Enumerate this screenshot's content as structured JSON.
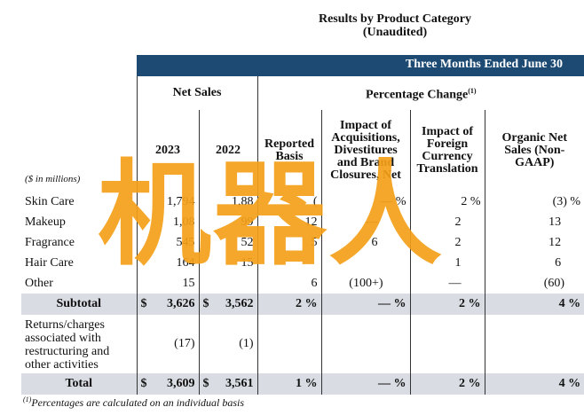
{
  "title_line1": "Results by Product Category",
  "title_line2": "(Unaudited)",
  "banner": "Three Months Ended June 30",
  "net_sales_label": "Net Sales",
  "pct_change_label": "Percentage Change",
  "pct_change_note": "(1)",
  "unit_label": "($ in millions)",
  "headers": {
    "y2023": "2023",
    "y2022": "2022",
    "reported": "Reported Basis",
    "impact_acq": "Impact of Acquisitions, Divestitures and Brand Closures, Net",
    "impact_fx": "Impact of Foreign Currency Translation",
    "organic": "Organic Net Sales (Non-GAAP)"
  },
  "rows": [
    {
      "label": "Skin Care",
      "y2023": "1,794",
      "y2022": "1,88",
      "reported": "(",
      "acq": "— %",
      "fx": "2 %",
      "organic": "(3) %"
    },
    {
      "label": "Makeup",
      "y2023": "1,08",
      "y2022": "99",
      "reported": "12",
      "acq": "—",
      "fx": "2",
      "organic": "13"
    },
    {
      "label": "Fragrance",
      "y2023": "545",
      "y2022": "52",
      "reported": "5",
      "acq": "6",
      "fx": "2",
      "organic": "12"
    },
    {
      "label": "Hair Care",
      "y2023": "164",
      "y2022": "15",
      "reported": "",
      "acq": "",
      "fx": "1",
      "organic": "6"
    },
    {
      "label": "Other",
      "y2023": "15",
      "y2022": "",
      "reported": "6",
      "acq": "(100+)",
      "fx": "—",
      "organic": "(60)"
    }
  ],
  "subtotal": {
    "label": "Subtotal",
    "y2023": "3,626",
    "y2022": "3,562",
    "reported": "2",
    "acq": "—",
    "fx": "2",
    "organic": "4"
  },
  "returns": {
    "label": "Returns/charges associated with restructuring and other activities",
    "y2023": "(17)",
    "y2022": "(1)"
  },
  "total": {
    "label": "Total",
    "y2023": "3,609",
    "y2022": "3,561",
    "reported": "1",
    "acq": "—",
    "fx": "2",
    "organic": "4"
  },
  "currency_symbol": "$",
  "percent_symbol": "%",
  "footnote_mark": "(1)",
  "footnote_text": "Percentages are calculated on an individual basis",
  "watermark": "机器人",
  "colors": {
    "banner": "#1d4a73",
    "shade": "#d9dde3",
    "watermark": "#f4a018"
  }
}
